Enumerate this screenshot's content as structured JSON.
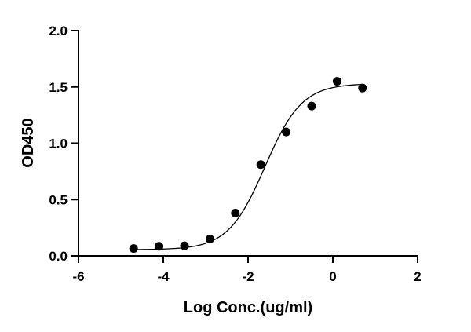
{
  "chart_data": {
    "type": "scatter",
    "xlabel": "Log Conc.(ug/ml)",
    "ylabel": "OD450",
    "xlim": [
      -6,
      2
    ],
    "ylim": [
      0,
      2
    ],
    "x_ticks": [
      "-6",
      "-4",
      "-2",
      "0",
      "2"
    ],
    "y_ticks": [
      "0.0",
      "0.5",
      "1.0",
      "1.5",
      "2.0"
    ],
    "grid": false,
    "legend": "none",
    "colors": {
      "points": "#000000",
      "curve": "#000000",
      "axes": "#000000"
    },
    "series": [
      {
        "points": [
          {
            "x": -4.7,
            "y": 0.065
          },
          {
            "x": -4.1,
            "y": 0.085
          },
          {
            "x": -3.5,
            "y": 0.09
          },
          {
            "x": -2.9,
            "y": 0.15
          },
          {
            "x": -2.3,
            "y": 0.38
          },
          {
            "x": -1.7,
            "y": 0.81
          },
          {
            "x": -1.1,
            "y": 1.1
          },
          {
            "x": -0.5,
            "y": 1.33
          },
          {
            "x": 0.1,
            "y": 1.55
          },
          {
            "x": 0.7,
            "y": 1.49
          }
        ],
        "fit": {
          "model": "4PL",
          "bottom": 0.055,
          "top": 1.53,
          "log_ec50": -1.6,
          "hill": 1.0,
          "x_range": [
            -4.7,
            0.7
          ]
        }
      }
    ]
  }
}
